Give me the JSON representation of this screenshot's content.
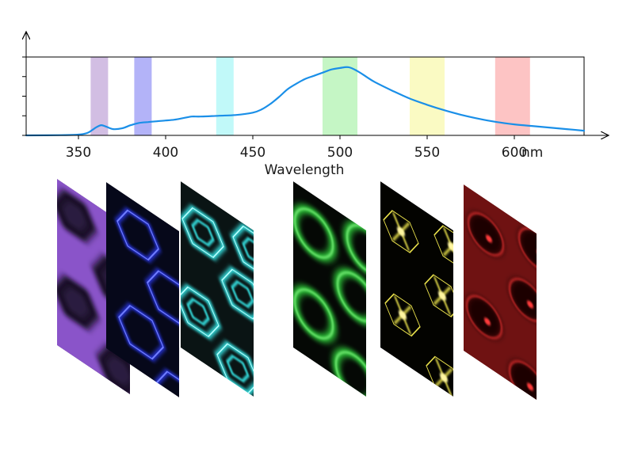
{
  "chart_data": {
    "type": "line",
    "title": "",
    "xlabel": "Wavelength",
    "x_unit": "nm",
    "ylabel": "",
    "xlim": [
      320,
      640
    ],
    "x_ticks": [
      350,
      400,
      450,
      500,
      550,
      600
    ],
    "x_tick_labels": [
      "350",
      "400",
      "450",
      "500",
      "550",
      "600"
    ],
    "y_ticks_count": 5,
    "grid": false,
    "line_color": "#1a8fe8",
    "series": [
      {
        "x": [
          320,
          340,
          350,
          355,
          358,
          360,
          363,
          366,
          370,
          375,
          380,
          385,
          390,
          395,
          400,
          405,
          410,
          415,
          420,
          430,
          440,
          450,
          455,
          460,
          465,
          470,
          475,
          480,
          485,
          490,
          495,
          500,
          505,
          510,
          515,
          520,
          530,
          540,
          550,
          560,
          570,
          580,
          590,
          600,
          610,
          620,
          630,
          640
        ],
        "y": [
          0.0,
          0.003,
          0.01,
          0.03,
          0.07,
          0.1,
          0.13,
          0.11,
          0.08,
          0.09,
          0.13,
          0.16,
          0.17,
          0.18,
          0.19,
          0.2,
          0.22,
          0.24,
          0.24,
          0.25,
          0.26,
          0.29,
          0.33,
          0.4,
          0.49,
          0.59,
          0.66,
          0.72,
          0.76,
          0.8,
          0.84,
          0.86,
          0.87,
          0.82,
          0.75,
          0.68,
          0.57,
          0.47,
          0.39,
          0.32,
          0.26,
          0.21,
          0.17,
          0.14,
          0.12,
          0.1,
          0.08,
          0.06
        ]
      }
    ],
    "bands": [
      {
        "center": 362,
        "width": 10,
        "color": "#9b6fc0",
        "opacity": 0.45
      },
      {
        "center": 387,
        "width": 10,
        "color": "#4a4aef",
        "opacity": 0.42
      },
      {
        "center": 434,
        "width": 10,
        "color": "#33ecec",
        "opacity": 0.3
      },
      {
        "center": 500,
        "width": 20,
        "color": "#58e558",
        "opacity": 0.35
      },
      {
        "center": 550,
        "width": 20,
        "color": "#f3f36f",
        "opacity": 0.42
      },
      {
        "center": 599,
        "width": 20,
        "color": "#fa6b6b",
        "opacity": 0.4
      }
    ]
  },
  "panels": [
    {
      "name": "violet-channel-image",
      "color": "#9b5fe0",
      "pattern": "violet"
    },
    {
      "name": "blue-channel-image",
      "color": "#2a38ee",
      "pattern": "blue"
    },
    {
      "name": "cyan-channel-image",
      "color": "#35e2e2",
      "pattern": "cyan"
    },
    {
      "name": "green-channel-image",
      "color": "#2fd03b",
      "pattern": "green"
    },
    {
      "name": "yellow-channel-image",
      "color": "#e6de4a",
      "pattern": "yellow"
    },
    {
      "name": "red-channel-image",
      "color": "#d32a2a",
      "pattern": "red"
    }
  ]
}
